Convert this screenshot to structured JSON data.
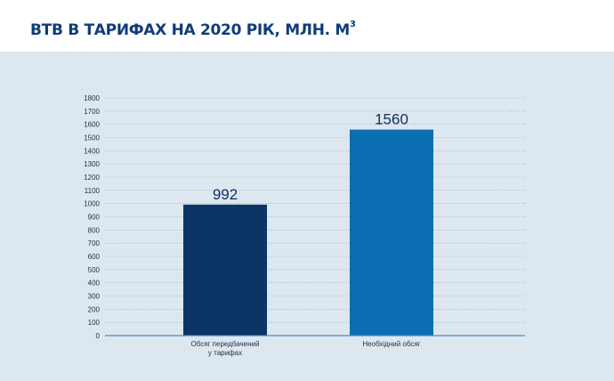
{
  "chart_data": {
    "type": "bar",
    "title": "ВТВ В ТАРИФАХ НА 2020 РІК, МЛН. М",
    "title_superscript": "3",
    "categories": [
      [
        "Обсяг передбачений",
        "у тарифах"
      ],
      [
        "Необхідний обсяг"
      ]
    ],
    "values": [
      992,
      1560
    ],
    "data_labels": [
      "992",
      "1560"
    ],
    "bar_colors": [
      "#0c3566",
      "#0b6eb3"
    ],
    "ylim": [
      0,
      1800
    ],
    "yticks": [
      0,
      100,
      200,
      300,
      400,
      500,
      600,
      700,
      800,
      900,
      1000,
      1100,
      1200,
      1300,
      1400,
      1500,
      1600,
      1700,
      1800
    ],
    "grid": true,
    "grid_color": "#7f93a6",
    "axis_color": "#4a8bc2",
    "xlabel": "",
    "ylabel": ""
  }
}
